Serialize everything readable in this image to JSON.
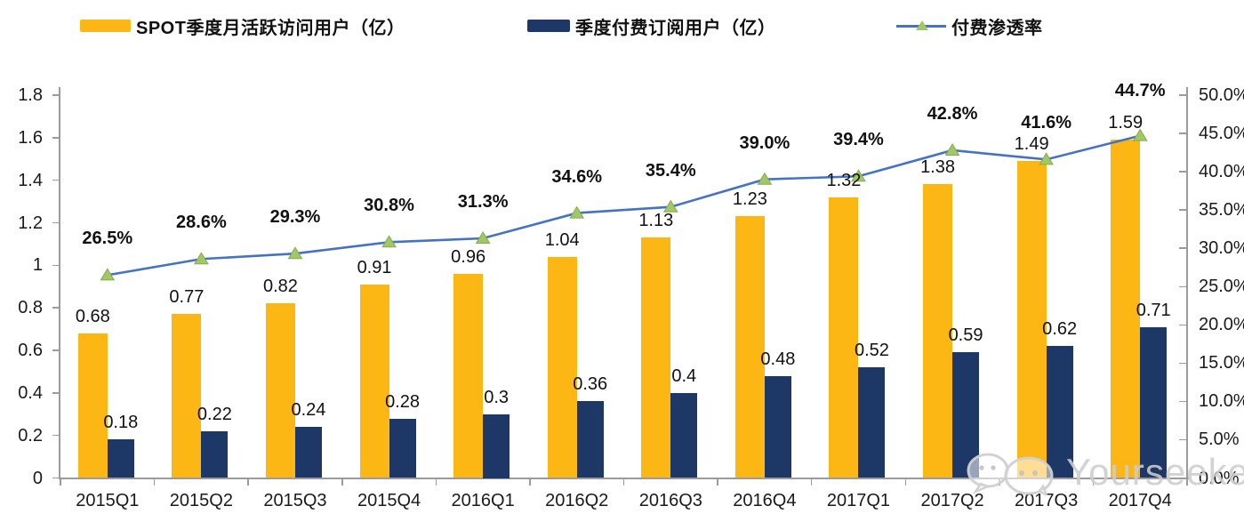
{
  "legend": [
    {
      "label": "SPOT季度月活跃访问用户（亿）",
      "swatch": "bar",
      "color": "#FCB714"
    },
    {
      "label": "季度付费订阅用户（亿）",
      "swatch": "bar",
      "color": "#1D3766"
    },
    {
      "label": "付费渗透率",
      "swatch": "line-triangle",
      "line_color": "#4472C4",
      "marker_color": "#A2C765"
    }
  ],
  "watermark": {
    "text": "Yourseeker",
    "icon": "wechat-icon"
  },
  "chart_data": {
    "type": "bar+line combo",
    "categories": [
      "2015Q1",
      "2015Q2",
      "2015Q3",
      "2015Q4",
      "2016Q1",
      "2016Q2",
      "2016Q3",
      "2016Q4",
      "2017Q1",
      "2017Q2",
      "2017Q3",
      "2017Q4"
    ],
    "series": [
      {
        "name": "SPOT季度月活跃访问用户（亿）",
        "type": "bar",
        "axis": "left",
        "color": "#FCB714",
        "values": [
          0.68,
          0.77,
          0.82,
          0.91,
          0.96,
          1.04,
          1.13,
          1.23,
          1.32,
          1.38,
          1.49,
          1.59
        ],
        "labels": [
          "0.68",
          "0.77",
          "0.82",
          "0.91",
          "0.96",
          "1.04",
          "1.13",
          "1.23",
          "1.32",
          "1.38",
          "1.49",
          "1.59"
        ]
      },
      {
        "name": "季度付费订阅用户（亿）",
        "type": "bar",
        "axis": "left",
        "color": "#1D3766",
        "values": [
          0.18,
          0.22,
          0.24,
          0.28,
          0.3,
          0.36,
          0.4,
          0.48,
          0.52,
          0.59,
          0.62,
          0.71
        ],
        "labels": [
          "0.18",
          "0.22",
          "0.24",
          "0.28",
          "0.3",
          "0.36",
          "0.4",
          "0.48",
          "0.52",
          "0.59",
          "0.62",
          "0.71"
        ]
      },
      {
        "name": "付费渗透率",
        "type": "line",
        "axis": "right",
        "color": "#4472C4",
        "marker": "triangle",
        "marker_color": "#A2C765",
        "values": [
          26.5,
          28.6,
          29.3,
          30.8,
          31.3,
          34.6,
          35.4,
          39.0,
          39.4,
          42.8,
          41.6,
          44.7
        ],
        "labels": [
          "26.5%",
          "28.6%",
          "29.3%",
          "30.8%",
          "31.3%",
          "34.6%",
          "35.4%",
          "39.0%",
          "39.4%",
          "42.8%",
          "41.6%",
          "44.7%"
        ]
      }
    ],
    "left_axis": {
      "min": 0,
      "max": 1.8,
      "step": 0.2,
      "ticks": [
        "0",
        "0.2",
        "0.4",
        "0.6",
        "0.8",
        "1",
        "1.2",
        "1.4",
        "1.6",
        "1.8"
      ]
    },
    "right_axis": {
      "min": 0,
      "max": 50,
      "step": 5,
      "ticks": [
        "0.0%",
        "5.0%",
        "10.0%",
        "15.0%",
        "20.0%",
        "25.0%",
        "30.0%",
        "35.0%",
        "40.0%",
        "45.0%",
        "50.0%"
      ]
    },
    "grid": false,
    "legend_position": "top"
  }
}
